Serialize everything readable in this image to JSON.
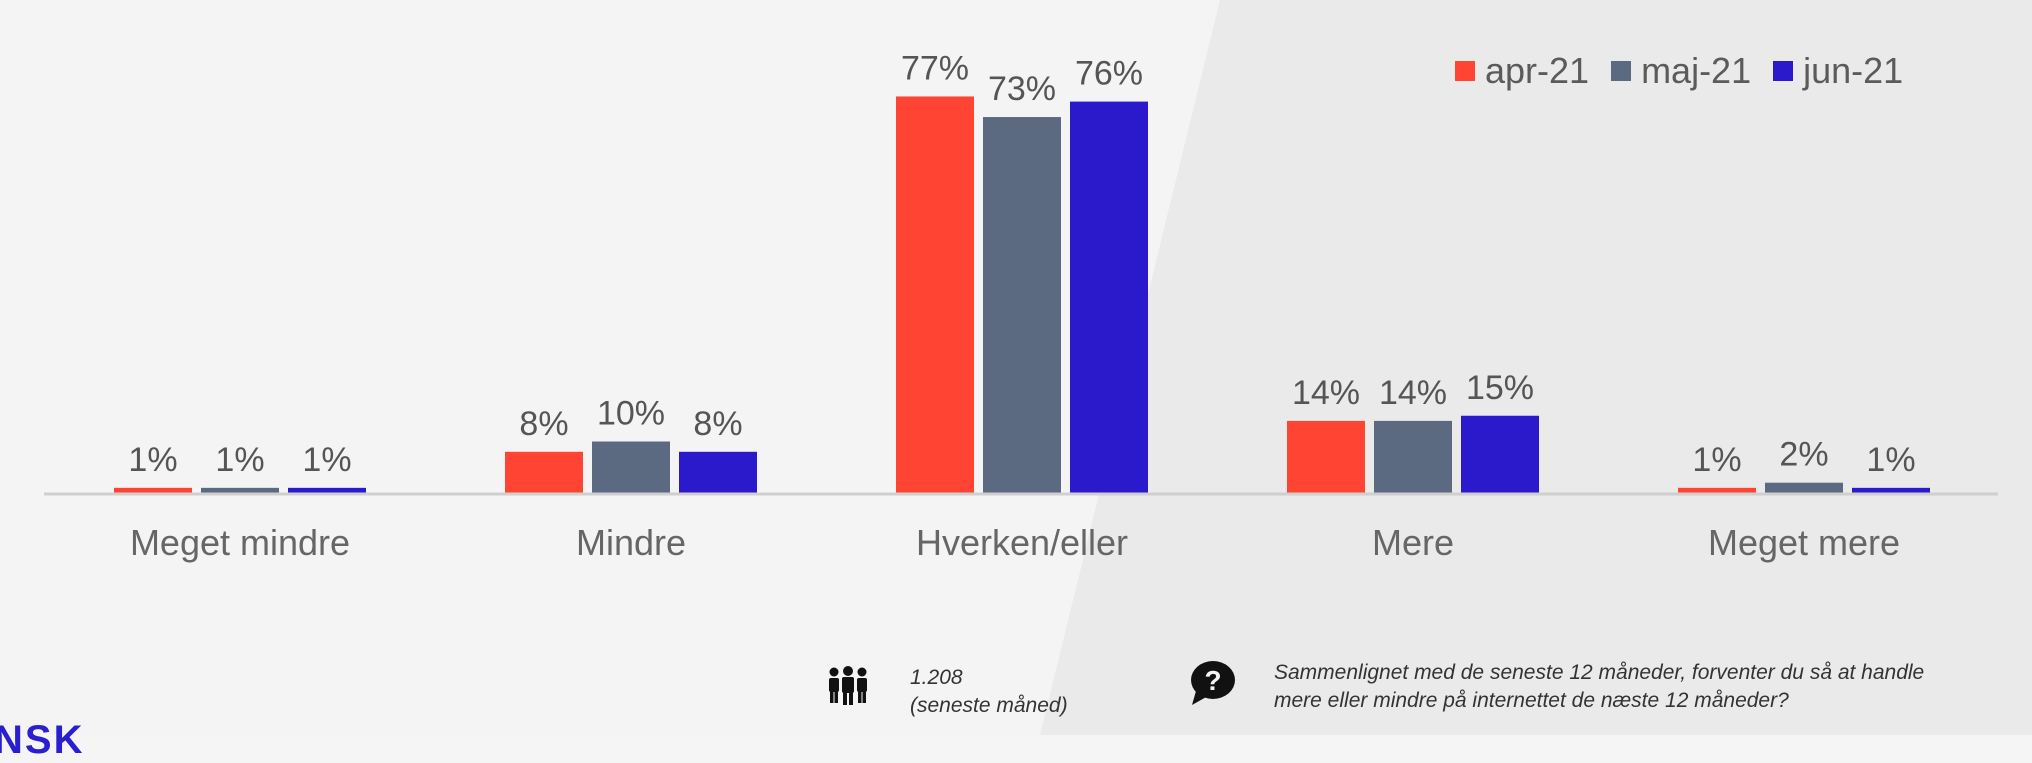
{
  "chart_data": {
    "type": "bar",
    "categories": [
      "Meget mindre",
      "Mindre",
      "Hverken/eller",
      "Mere",
      "Meget mere"
    ],
    "series": [
      {
        "name": "apr-21",
        "color": "#ff4433",
        "values": [
          1,
          8,
          77,
          14,
          1
        ]
      },
      {
        "name": "maj-21",
        "color": "#5b6a80",
        "values": [
          1,
          10,
          73,
          14,
          2
        ]
      },
      {
        "name": "jun-21",
        "color": "#2a1acc",
        "values": [
          1,
          8,
          76,
          15,
          1
        ]
      }
    ],
    "value_suffix": "%",
    "ylim": [
      0,
      80
    ],
    "legend_position": "top-right",
    "grid": false
  },
  "footer": {
    "respondents": {
      "icon": "people-icon",
      "line1": "1.208",
      "line2": "(seneste måned)"
    },
    "question": {
      "icon": "question-bubble-icon",
      "line1": "Sammenlignet med de seneste 12 måneder, forventer du så at handle",
      "line2": "mere eller mindre på internettet de næste 12 måneder?"
    }
  },
  "brand": {
    "text": "NSK"
  }
}
